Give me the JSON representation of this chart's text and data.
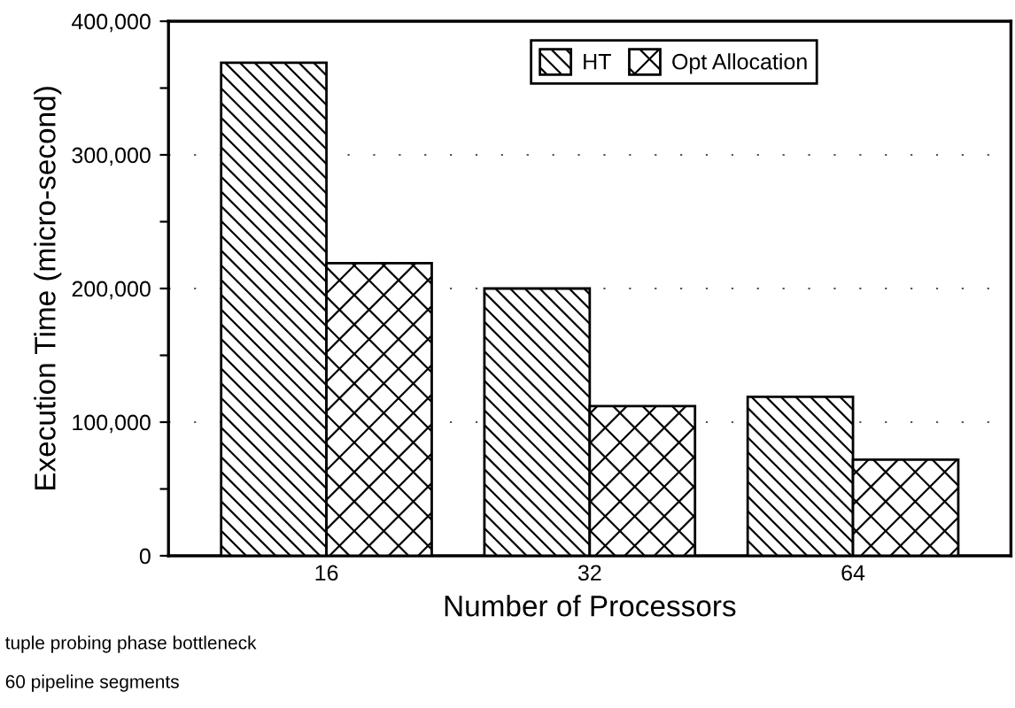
{
  "chart_data": {
    "type": "bar",
    "xlabel": "Number of Processors",
    "ylabel": "Execution Time (micro-second)",
    "categories": [
      "16",
      "32",
      "64"
    ],
    "series": [
      {
        "name": "HT",
        "color": "#000000",
        "values": [
          369000,
          200000,
          119000
        ]
      },
      {
        "name": "Opt Allocation",
        "color": "#000000",
        "values": [
          219000,
          112000,
          72000
        ]
      }
    ],
    "ylim": [
      0,
      400000
    ],
    "yticks": [
      0,
      {
        "value": 50000,
        "label": null
      },
      {
        "value": 100000,
        "label": "100,000"
      },
      {
        "value": 150000,
        "label": null
      },
      {
        "value": 200000,
        "label": "200,000"
      },
      {
        "value": 250000,
        "label": null
      },
      {
        "value": 300000,
        "label": "300,000"
      },
      {
        "value": 350000,
        "label": null
      },
      {
        "value": 400000,
        "label": "400,000"
      }
    ],
    "grid": "y",
    "legend": "top right",
    "annotations": [
      "tuple probing phase bottleneck",
      "60 pipeline segments"
    ]
  }
}
